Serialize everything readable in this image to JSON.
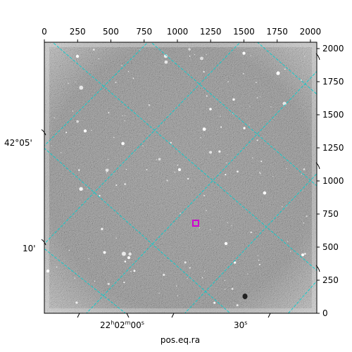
{
  "figure": {
    "xlabel": "pos.eq.ra",
    "top_axis": {
      "ticks": [
        0,
        250,
        500,
        750,
        1000,
        1250,
        1500,
        1750,
        2000
      ],
      "range": [
        0,
        2048
      ]
    },
    "right_axis": {
      "ticks": [
        0,
        250,
        500,
        750,
        1000,
        1250,
        1500,
        1750,
        2000
      ],
      "range": [
        0,
        2048
      ]
    },
    "left_axis": {
      "labels": [
        "42°05'",
        "10'"
      ]
    },
    "bottom_axis": {
      "labels": [
        {
          "hms": "22",
          "h": "h",
          "mm": "02",
          "m": "m",
          "ss": "00",
          "s": "s"
        },
        {
          "ss": "30",
          "s": "s"
        }
      ]
    },
    "colors": {
      "grid": "#00d0d0",
      "marker": "#d000d0",
      "frame": "#000000"
    }
  }
}
